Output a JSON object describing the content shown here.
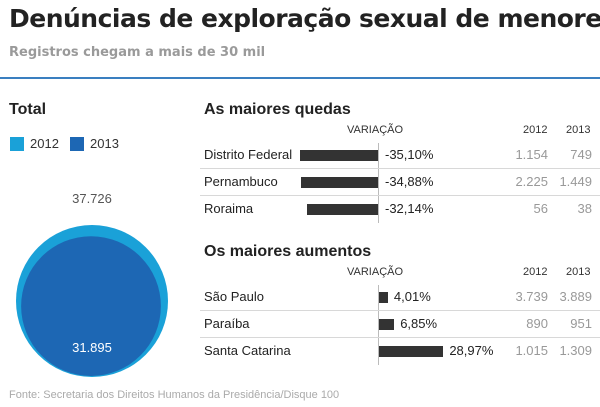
{
  "header": {
    "title": "Denúncias de exploração sexual de menores",
    "subtitle": "Registros chegam a mais de 30 mil"
  },
  "colors": {
    "y2012": "#1aa1d8",
    "y2013": "#1d67b4",
    "bar": "#333333",
    "rule": "#3a7fc0"
  },
  "chart_data": [
    {
      "type": "bubble",
      "title": "Total",
      "legend": [
        "2012",
        "2013"
      ],
      "values": [
        37726,
        31895
      ],
      "labels": [
        "37.726",
        "31.895"
      ]
    },
    {
      "type": "bar",
      "title": "As maiores quedas",
      "columns": {
        "variation": "VARIAÇÃO",
        "y2012": "2012",
        "y2013": "2013"
      },
      "rows": [
        {
          "state": "Distrito Federal",
          "variation": -35.1,
          "variation_label": "-35,10%",
          "y2012": "1.154",
          "y2013": "749"
        },
        {
          "state": "Pernambuco",
          "variation": -34.88,
          "variation_label": "-34,88%",
          "y2012": "2.225",
          "y2013": "1.449"
        },
        {
          "state": "Roraima",
          "variation": -32.14,
          "variation_label": "-32,14%",
          "y2012": "56",
          "y2013": "38"
        }
      ]
    },
    {
      "type": "bar",
      "title": "Os maiores aumentos",
      "columns": {
        "variation": "VARIAÇÃO",
        "y2012": "2012",
        "y2013": "2013"
      },
      "rows": [
        {
          "state": "São Paulo",
          "variation": 4.01,
          "variation_label": "4,01%",
          "y2012": "3.739",
          "y2013": "3.889"
        },
        {
          "state": "Paraíba",
          "variation": 6.85,
          "variation_label": "6,85%",
          "y2012": "890",
          "y2013": "951"
        },
        {
          "state": "Santa Catarina",
          "variation": 28.97,
          "variation_label": "28,97%",
          "y2012": "1.015",
          "y2013": "1.309"
        }
      ]
    }
  ],
  "footer": "Fonte: Secretaria dos Direitos Humanos da Presidência/Disque 100"
}
